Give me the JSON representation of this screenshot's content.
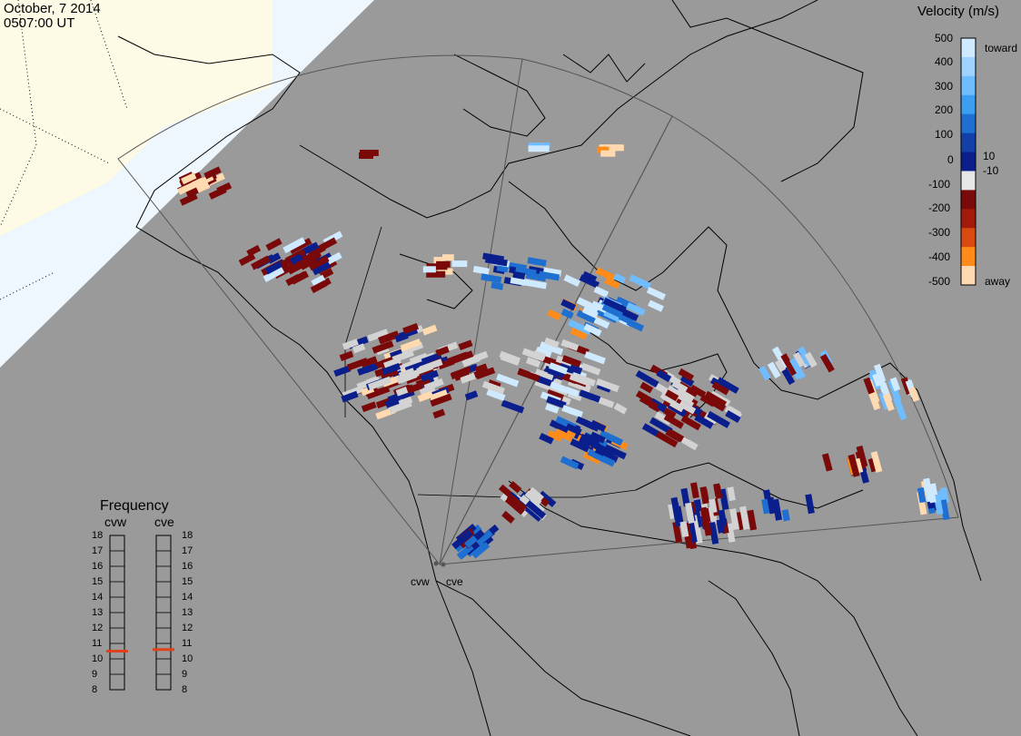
{
  "header": {
    "date": "October, 7 2014",
    "time": "0507:00 UT"
  },
  "colorbar": {
    "title": "Velocity (m/s)",
    "ticks": [
      "500",
      "400",
      "300",
      "200",
      "100",
      "10",
      "0",
      "-10",
      "-100",
      "-200",
      "-300",
      "-400",
      "-500"
    ],
    "toward_label": "toward",
    "away_label": "away",
    "colors": [
      "#cfe9ff",
      "#9fd3ff",
      "#6fbdff",
      "#3c9ef0",
      "#1f6fd0",
      "#123fa8",
      "#0a1f8c",
      "#e6e6e6",
      "#7a0a0a",
      "#a21a0a",
      "#d84a10",
      "#ff8c1a",
      "#ffd9b0"
    ]
  },
  "frequency": {
    "title": "Frequency",
    "radars": [
      {
        "name": "cvw",
        "value": 10.5
      },
      {
        "name": "cve",
        "value": 10.6
      }
    ],
    "ticks": [
      "18",
      "17",
      "16",
      "15",
      "14",
      "13",
      "12",
      "11",
      "10",
      "9",
      "8"
    ],
    "range": [
      8,
      18
    ]
  },
  "radars": [
    {
      "name": "cvw"
    },
    {
      "name": "cve"
    }
  ],
  "colors": {
    "background": "#9a9a9a",
    "daylight": "#fdfbe6",
    "twilight": "#eef7fd",
    "coast": "#000000",
    "gray_scatter": "#d3d3d3"
  }
}
